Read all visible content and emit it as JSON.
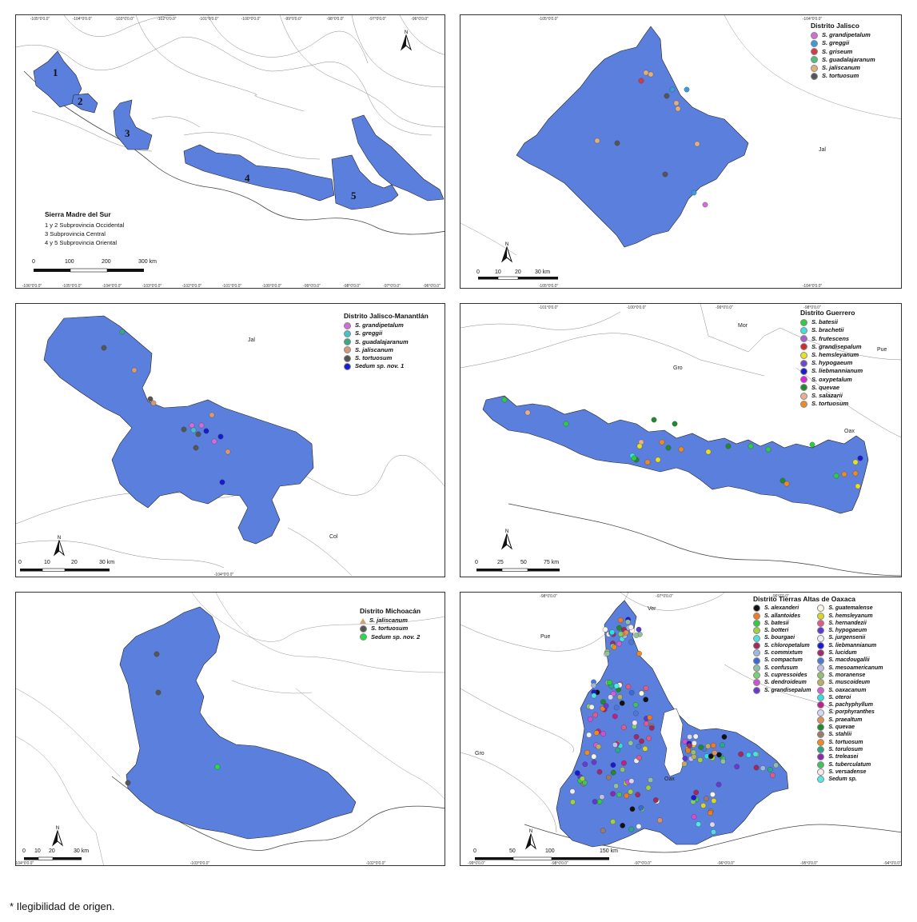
{
  "footnote": "* Ilegibilidad de origen.",
  "map1": {
    "legend_title": "Sierra Madre del Sur",
    "legend_lines": [
      "1 y 2 Subprovincia Occidental",
      "3       Subprovincia Central",
      "4 y 5 Subprovincia Oriental"
    ],
    "region_numbers": [
      "1",
      "2",
      "3",
      "4",
      "5"
    ],
    "scale_labels": [
      "0",
      "100",
      "200",
      "300 km"
    ],
    "top_coords": [
      "-105°0'0.0\"",
      "-104°0'0.0\"",
      "-103°0'0.0\"",
      "-102°0'0.0\"",
      "-101°0'0.0\"",
      "-100°0'0.0\"",
      "-99°0'0.0\"",
      "-98°0'0.0\"",
      "-97°0'0.0\"",
      "-96°0'0.0\""
    ],
    "bottom_coords": [
      "-106°0'0.0\"",
      "-105°0'0.0\"",
      "-104°0'0.0\"",
      "-103°0'0.0\"",
      "-102°0'0.0\"",
      "-101°0'0.0\"",
      "-100°0'0.0\"",
      "-99°0'0.0\"",
      "-98°0'0.0\"",
      "-97°0'0.0\"",
      "-96°0'0.0\""
    ]
  },
  "map2": {
    "legend_title": "Distrito Jalisco",
    "species": [
      {
        "name": "S. grandipetalum",
        "color": "#d36bd8"
      },
      {
        "name": "S. greggii",
        "color": "#3a9bd9"
      },
      {
        "name": "S. griseum",
        "color": "#d43a48"
      },
      {
        "name": "S. guadalajaranum",
        "color": "#4fc07a"
      },
      {
        "name": "S. jaliscanum",
        "color": "#e0b07c"
      },
      {
        "name": "S. tortuosum",
        "color": "#555555"
      }
    ],
    "state_labels": [
      "Jal"
    ],
    "scale_labels": [
      "0",
      "10",
      "20",
      "30 km"
    ],
    "top_coords": [
      "-105°0'0.0\"",
      "-104°0'0.0\""
    ],
    "bottom_coords": [
      "-105°0'0.0\"",
      "-104°0'0.0\""
    ]
  },
  "map3": {
    "legend_title": "Distrito Jalisco-Manantlán",
    "species": [
      {
        "name": "S. grandipetalum",
        "color": "#d36bd8"
      },
      {
        "name": "S. greggii",
        "color": "#45c2c8"
      },
      {
        "name": "S. guadalajaranum",
        "color": "#3aa882"
      },
      {
        "name": "S. jaliscanum",
        "color": "#d89873"
      },
      {
        "name": "S. tortuosum",
        "color": "#555555"
      },
      {
        "name": "Sedum sp. nov. 1",
        "color": "#1a1ad0"
      }
    ],
    "state_labels": [
      "Jal",
      "Col"
    ],
    "scale_labels": [
      "0",
      "10",
      "20",
      "30 km"
    ],
    "bottom_coords": [
      "-104°0'0.0\""
    ]
  },
  "map4": {
    "legend_title": "Distrito Guerrero",
    "species": [
      {
        "name": "S. batesii",
        "color": "#2ecc40"
      },
      {
        "name": "S. brachetii",
        "color": "#3fe0e0"
      },
      {
        "name": "S. frutescens",
        "color": "#b05ad0"
      },
      {
        "name": "S. grandisepalum",
        "color": "#d42a2a"
      },
      {
        "name": "S. hemsleyanum",
        "color": "#e8e020"
      },
      {
        "name": "S. hypogaeum",
        "color": "#6a4ad0"
      },
      {
        "name": "S. liebmannianum",
        "color": "#1a1ad0"
      },
      {
        "name": "S. oxypetalum",
        "color": "#e020e0"
      },
      {
        "name": "S. quevae",
        "color": "#208a30"
      },
      {
        "name": "S. salazarii",
        "color": "#e8b090"
      },
      {
        "name": "S. tortuosum",
        "color": "#f08a20"
      }
    ],
    "state_labels": [
      "Mor",
      "Pue",
      "Gro",
      "Oax"
    ],
    "scale_labels": [
      "0",
      "25",
      "50",
      "75 km"
    ],
    "top_coords": [
      "-101°0'0.0\"",
      "-100°0'0.0\"",
      "-99°0'0.0\"",
      "-98°0'0.0\""
    ]
  },
  "map5": {
    "legend_title": "Distrito Michoacán",
    "species": [
      {
        "name": "S. jaliscanum",
        "color": "#c9a37a",
        "shape": "triangle"
      },
      {
        "name": "S. tortuosum",
        "color": "#555555"
      },
      {
        "name": "Sedum sp. nov. 2",
        "color": "#22dd44"
      }
    ],
    "scale_labels": [
      "0",
      "10",
      "20",
      "30 km"
    ],
    "bottom_coords": [
      "-104°0'0.0\"",
      "-103°0'0.0\"",
      "-102°0'0.0\""
    ]
  },
  "map6": {
    "legend_title": "Distrito Tierras Altas de Oaxaca",
    "species_col1": [
      {
        "name": "S. alexanderi",
        "color": "#111111"
      },
      {
        "name": "S. allantoides",
        "color": "#f07a20"
      },
      {
        "name": "S. batesii",
        "color": "#2ecc40"
      },
      {
        "name": "S. botteri",
        "color": "#a0d040"
      },
      {
        "name": "S. bourgaei",
        "color": "#50e0e0"
      },
      {
        "name": "S. chloropetalum",
        "color": "#a02a60"
      },
      {
        "name": "S. commixtum",
        "color": "#a0b8e0"
      },
      {
        "name": "S. compactum",
        "color": "#3a6ad8"
      },
      {
        "name": "S. confusum",
        "color": "#90c0a0"
      },
      {
        "name": "S. cupressoides",
        "color": "#7ad070"
      },
      {
        "name": "S. dendroideum",
        "color": "#d050d0"
      },
      {
        "name": "S. grandisepalum",
        "color": "#6a3ad0"
      }
    ],
    "species_col2": [
      {
        "name": "S. guatemalense",
        "color": "#f8f8e0"
      },
      {
        "name": "S. hemsleyanum",
        "color": "#d8d820"
      },
      {
        "name": "S. hernandezii",
        "color": "#e05a8a"
      },
      {
        "name": "S. hypogaeum",
        "color": "#5a3ad0"
      },
      {
        "name": "S. jurgensenii",
        "color": "#f0f0f0"
      },
      {
        "name": "S. liebmannianum",
        "color": "#1a1ad0"
      },
      {
        "name": "S. lucidum",
        "color": "#a02a70"
      },
      {
        "name": "S. macdougallii",
        "color": "#4a7ad8"
      },
      {
        "name": "S. mesoamericanum",
        "color": "#c0c0e8"
      },
      {
        "name": "S. moranense",
        "color": "#90c070"
      },
      {
        "name": "S. muscoideum",
        "color": "#b8b060"
      },
      {
        "name": "S. oaxacanum",
        "color": "#d060d0"
      },
      {
        "name": "S. oteroi",
        "color": "#30e0e0"
      },
      {
        "name": "S. pachyphyllum",
        "color": "#c0208a"
      },
      {
        "name": "S. porphyranthes",
        "color": "#d8d8f0"
      },
      {
        "name": "S. praealtum",
        "color": "#e0905a"
      },
      {
        "name": "S. quevae",
        "color": "#208a30"
      },
      {
        "name": "S. stahlii",
        "color": "#9a7a6a"
      },
      {
        "name": "S. tortuosum",
        "color": "#f08a20"
      },
      {
        "name": "S. torulosum",
        "color": "#2aa88a"
      },
      {
        "name": "S. treleasei",
        "color": "#8a2ab0"
      },
      {
        "name": "S. tuberculatum",
        "color": "#40c060"
      },
      {
        "name": "S. versadense",
        "color": "#f8e8f0"
      },
      {
        "name": "Sedum sp.",
        "color": "#50e8e8"
      }
    ],
    "state_labels": [
      "Pue",
      "Ver",
      "Gro",
      "Oax"
    ],
    "scale_labels": [
      "0",
      "50",
      "100",
      "150 km"
    ],
    "top_coords": [
      "-98°0'0.0\"",
      "-97°0'0.0\"",
      "-96°0'0.0\""
    ],
    "bottom_coords": [
      "-99°0'0.0\"",
      "-98°0'0.0\"",
      "-97°0'0.0\"",
      "-96°0'0.0\"",
      "-95°0'0.0\"",
      "-94°0'0.0\""
    ]
  },
  "north_label": "N"
}
